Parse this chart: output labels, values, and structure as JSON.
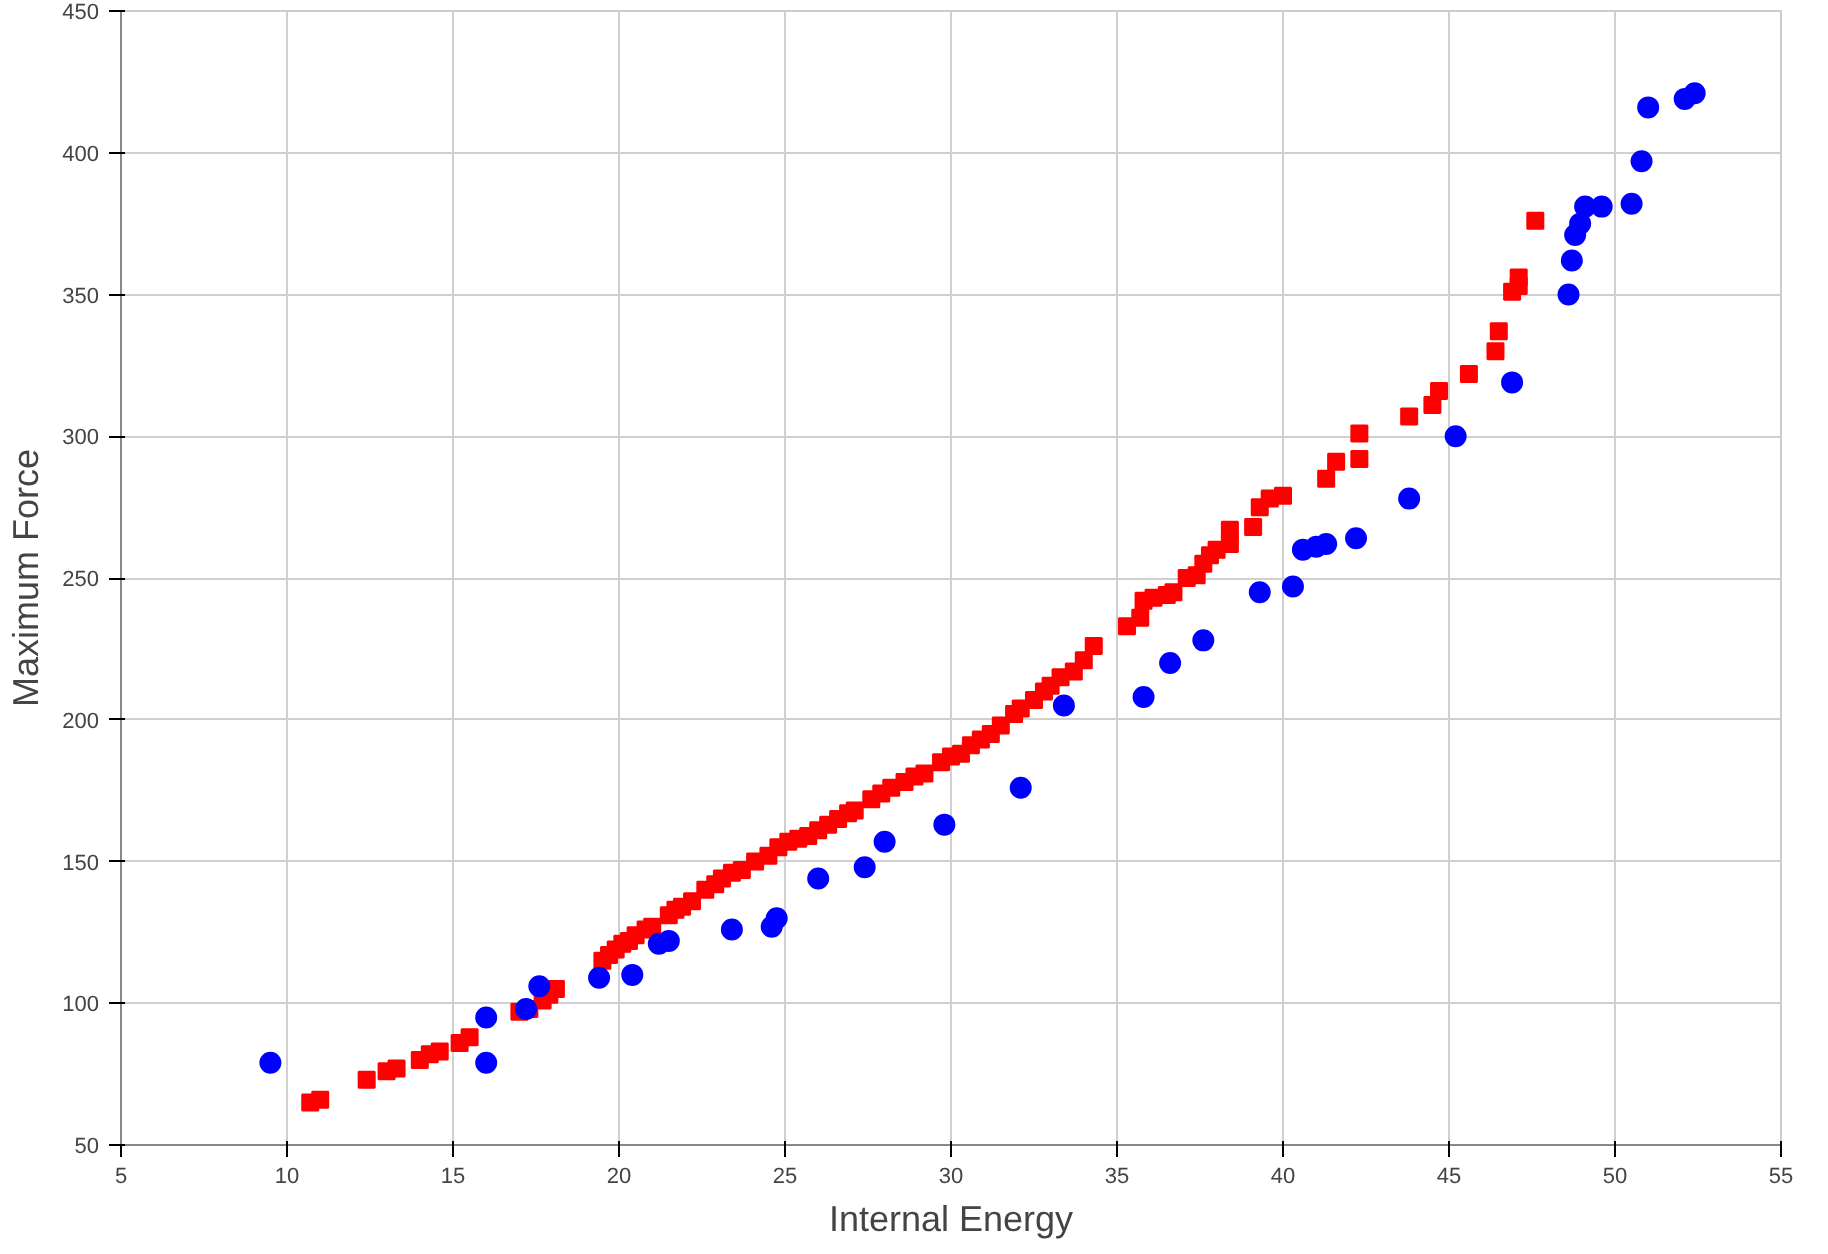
{
  "chart_data": {
    "type": "scatter",
    "xlabel": "Internal Energy",
    "ylabel": "Maximum Force",
    "xlim": [
      5,
      55
    ],
    "ylim": [
      50,
      450
    ],
    "xticks": [
      5,
      10,
      15,
      20,
      25,
      30,
      35,
      40,
      45,
      50,
      55
    ],
    "yticks": [
      50,
      100,
      150,
      200,
      250,
      300,
      350,
      400,
      450
    ],
    "grid": true,
    "series": [
      {
        "color": "#ff0000",
        "marker": "square",
        "x": [
          10.7,
          11.0,
          12.4,
          13.0,
          13.3,
          14.0,
          14.3,
          14.6,
          15.2,
          15.5,
          17.0,
          17.3,
          17.7,
          17.9,
          18.1,
          19.5,
          19.7,
          19.9,
          20.1,
          20.3,
          20.5,
          20.8,
          21.0,
          21.5,
          21.7,
          21.9,
          22.2,
          22.6,
          22.9,
          23.1,
          23.4,
          23.7,
          24.1,
          24.5,
          24.8,
          25.1,
          25.4,
          25.7,
          26.0,
          26.3,
          26.6,
          26.9,
          27.1,
          27.6,
          27.9,
          28.2,
          28.6,
          28.9,
          29.2,
          29.7,
          30.0,
          30.3,
          30.6,
          30.9,
          31.2,
          31.5,
          31.9,
          32.1,
          32.5,
          32.8,
          33.0,
          33.3,
          33.7,
          34.0,
          34.3,
          35.3,
          35.7,
          35.8,
          36.1,
          36.5,
          36.7,
          37.1,
          37.4,
          37.6,
          37.8,
          38.0,
          38.4,
          38.4,
          39.1,
          39.3,
          39.6,
          40.0,
          41.3,
          41.6,
          42.3,
          42.3,
          43.8,
          44.5,
          44.7,
          45.6,
          46.4,
          46.5,
          46.9,
          47.1,
          47.1,
          47.6
        ],
        "values": [
          65,
          66,
          73,
          76,
          77,
          80,
          82,
          83,
          86,
          88,
          97,
          98,
          101,
          103,
          105,
          115,
          117,
          119,
          121,
          122,
          124,
          126,
          127,
          131,
          133,
          134,
          136,
          140,
          142,
          144,
          146,
          147,
          150,
          152,
          155,
          157,
          158,
          159,
          161,
          163,
          165,
          167,
          168,
          172,
          174,
          176,
          178,
          180,
          181,
          185,
          187,
          188,
          191,
          193,
          195,
          198,
          202,
          204,
          207,
          210,
          212,
          215,
          217,
          221,
          226,
          233,
          236,
          242,
          243,
          244,
          245,
          250,
          251,
          255,
          258,
          260,
          262,
          267,
          268,
          275,
          278,
          279,
          285,
          291,
          292,
          301,
          307,
          311,
          316,
          322,
          330,
          337,
          351,
          353,
          356,
          376
        ]
      },
      {
        "color": "#0000ff",
        "marker": "circle",
        "x": [
          9.5,
          16.0,
          16.0,
          17.2,
          17.6,
          19.4,
          20.4,
          21.2,
          21.5,
          23.4,
          24.6,
          24.75,
          26.0,
          27.4,
          28.0,
          29.8,
          32.1,
          33.4,
          35.8,
          36.6,
          37.6,
          39.3,
          40.3,
          40.6,
          41.0,
          41.3,
          42.2,
          43.8,
          45.2,
          46.9,
          48.6,
          48.7,
          48.8,
          48.95,
          49.1,
          49.6,
          50.5,
          50.8,
          51.0,
          52.1,
          52.4
        ],
        "values": [
          79,
          79,
          95,
          98,
          106,
          109,
          110,
          121,
          122,
          126,
          127,
          130,
          144,
          148,
          157,
          163,
          176,
          205,
          208,
          220,
          228,
          245,
          247,
          260,
          261,
          262,
          264,
          278,
          300,
          319,
          350,
          362,
          371,
          375,
          381,
          381,
          382,
          397,
          416,
          419,
          421
        ]
      }
    ]
  }
}
